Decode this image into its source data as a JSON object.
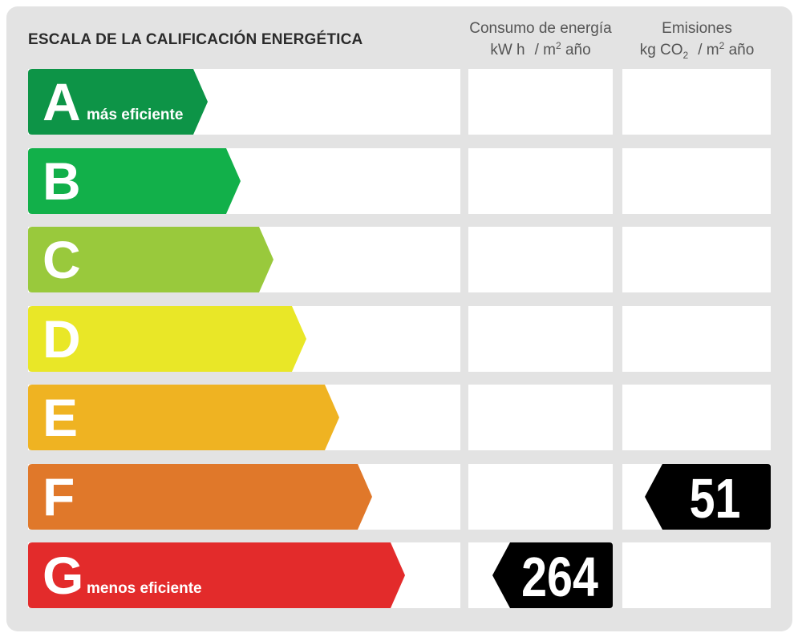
{
  "title": "ESCALA DE LA CALIFICACIÓN ENERGÉTICA",
  "columns": {
    "consumption": {
      "line1": "Consumo de energía",
      "unit_a": "kW h",
      "unit_sep": "/ m",
      "unit_sup": "2",
      "unit_tail": " año"
    },
    "emissions": {
      "line1": "Emisiones",
      "unit_a": "kg CO",
      "unit_sub": "2",
      "unit_sep": "/ m",
      "unit_sup": "2",
      "unit_tail": " año"
    }
  },
  "grades": [
    {
      "letter": "A",
      "caption": "más eficiente",
      "color": "#0d9447"
    },
    {
      "letter": "B",
      "caption": "",
      "color": "#12b04a"
    },
    {
      "letter": "C",
      "caption": "",
      "color": "#99c93c"
    },
    {
      "letter": "D",
      "caption": "",
      "color": "#e9e727"
    },
    {
      "letter": "E",
      "caption": "",
      "color": "#efb322"
    },
    {
      "letter": "F",
      "caption": "",
      "color": "#e0782a"
    },
    {
      "letter": "G",
      "caption": "menos eficiente",
      "color": "#e32b2b"
    }
  ],
  "rating": {
    "consumption": {
      "grade": "G",
      "value": "264"
    },
    "emissions": {
      "grade": "F",
      "value": "51"
    }
  },
  "indicator_color": "#000000"
}
